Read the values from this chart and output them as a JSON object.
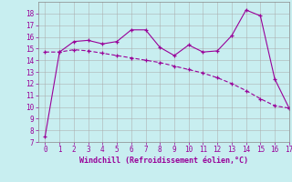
{
  "xlabel": "Windchill (Refroidissement éolien,°C)",
  "x": [
    0,
    1,
    2,
    3,
    4,
    5,
    6,
    7,
    8,
    9,
    10,
    11,
    12,
    13,
    14,
    15,
    16,
    17
  ],
  "line1_y": [
    7.5,
    14.7,
    15.6,
    15.7,
    15.4,
    15.6,
    16.6,
    16.6,
    15.1,
    14.4,
    15.3,
    14.7,
    14.8,
    16.1,
    18.3,
    17.8,
    12.4,
    9.9
  ],
  "line2_y": [
    14.7,
    14.7,
    14.9,
    14.8,
    14.6,
    14.4,
    14.2,
    14.0,
    13.8,
    13.5,
    13.2,
    12.9,
    12.5,
    12.0,
    11.4,
    10.7,
    10.1,
    9.9
  ],
  "line_color": "#990099",
  "bg_color": "#c8eef0",
  "grid_color": "#aaaaaa",
  "ylim": [
    7,
    19
  ],
  "xlim": [
    -0.5,
    17
  ],
  "yticks": [
    7,
    8,
    9,
    10,
    11,
    12,
    13,
    14,
    15,
    16,
    17,
    18
  ],
  "xticks": [
    0,
    1,
    2,
    3,
    4,
    5,
    6,
    7,
    8,
    9,
    10,
    11,
    12,
    13,
    14,
    15,
    16,
    17
  ]
}
